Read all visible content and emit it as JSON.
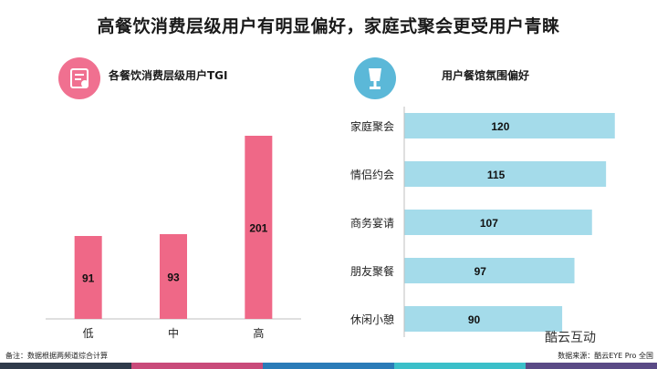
{
  "headline": "高餐饮消费层级用户有明显偏好，家庭式聚会更受用户青睐",
  "left_panel": {
    "title": "各餐饮消费层级用户TGI",
    "icon": "receipt-icon"
  },
  "right_panel": {
    "title": "用户餐馆氛围偏好",
    "icon": "lamp-icon"
  },
  "footnote": "备注：数据根据两频道综合计算",
  "source": "数据来源：酷云EYE Pro 全国",
  "brand": "酷云互动",
  "colors": {
    "pink": "#ef6887",
    "blue": "#a4dbea",
    "stripe": [
      "#2f3a4a",
      "#c94a7a",
      "#2a7bb8",
      "#3bbfc9",
      "#5a4a86"
    ]
  },
  "chart_data": [
    {
      "type": "bar",
      "title": "各餐饮消费层级用户TGI",
      "categories": [
        "低",
        "中",
        "高"
      ],
      "values": [
        91,
        93,
        201
      ],
      "ylim": [
        0,
        220
      ]
    },
    {
      "type": "bar",
      "orientation": "horizontal",
      "title": "用户餐馆氛围偏好",
      "categories": [
        "家庭聚会",
        "情侣约会",
        "商务宴请",
        "朋友聚餐",
        "休闲小憩"
      ],
      "values": [
        120,
        115,
        107,
        97,
        90
      ],
      "xlim": [
        0,
        130
      ]
    }
  ]
}
